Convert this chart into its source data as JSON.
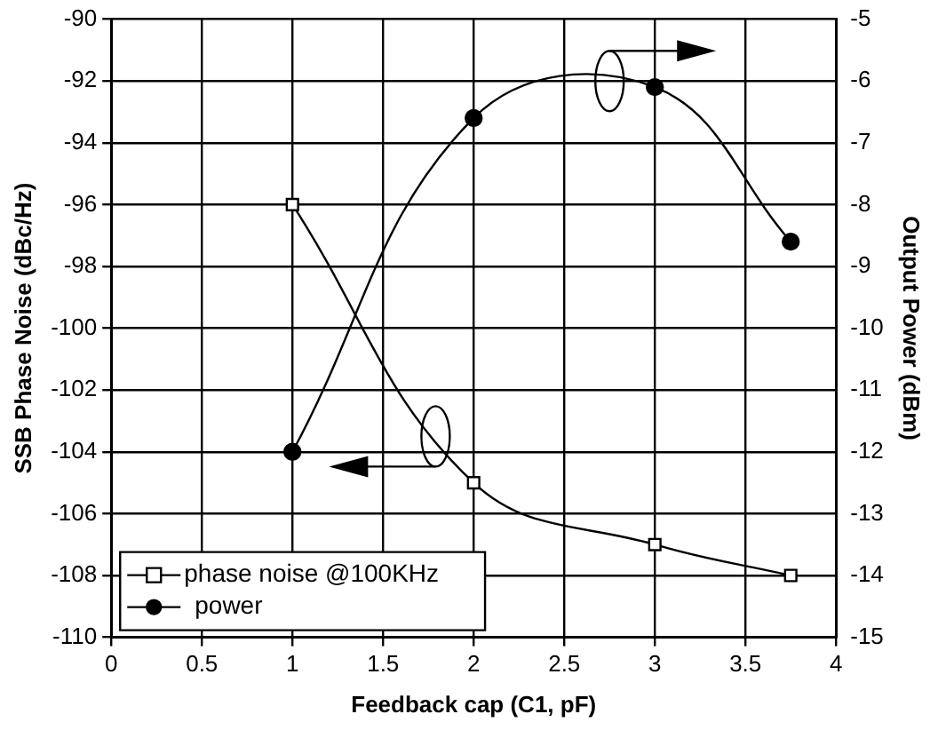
{
  "chart_data": {
    "type": "line",
    "xlabel": "Feedback cap (C1, pF)",
    "ylabel": "SSB Phase Noise (dBc/Hz)",
    "y2label": "Output Power (dBm)",
    "xlim": [
      0,
      4
    ],
    "xticks": [
      0,
      0.5,
      1,
      1.5,
      2,
      2.5,
      3,
      3.5,
      4
    ],
    "ylim": [
      -110,
      -90
    ],
    "yticks": [
      -110,
      -108,
      -106,
      -104,
      -102,
      -100,
      -98,
      -96,
      -94,
      -92,
      -90
    ],
    "y2lim": [
      -15,
      -5
    ],
    "y2ticks": [
      -15,
      -14,
      -13,
      -12,
      -11,
      -10,
      -9,
      -8,
      -7,
      -6,
      -5
    ],
    "grid": true,
    "legend": "bottom left",
    "series": [
      {
        "name": "phase noise @100KHz",
        "color": "#000000",
        "marker": "square",
        "x": [
          1,
          2,
          3,
          3.75
        ],
        "values": [
          -96,
          -105,
          -107,
          -108
        ]
      },
      {
        "name": "power",
        "color": "#000000",
        "marker": "circle",
        "axis": "y2",
        "x": [
          1,
          2,
          3,
          3.75
        ],
        "values": [
          -12,
          -6.6,
          -6.1,
          -8.6
        ]
      }
    ]
  }
}
